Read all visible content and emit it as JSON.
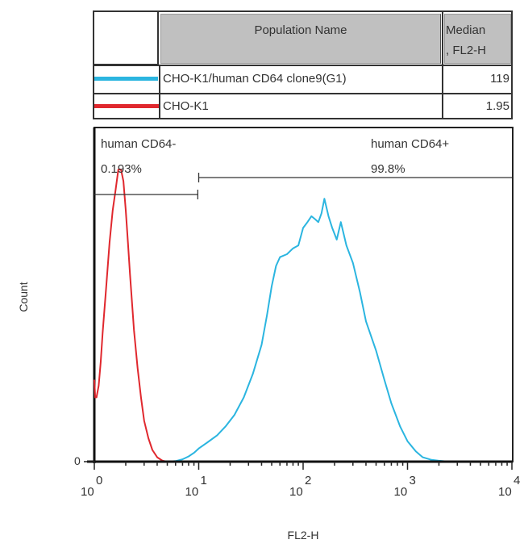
{
  "legend": {
    "header": {
      "population_name": "Population Name",
      "median_line1": "Median",
      "median_line2": ", FL2-H"
    },
    "rows": [
      {
        "color": "#2bb5e0",
        "name": "CHO-K1/human CD64 clone9(G1)",
        "median": "119"
      },
      {
        "color": "#e0282e",
        "name": "CHO-K1",
        "median": "1.95"
      }
    ]
  },
  "chart_data": {
    "type": "line",
    "title": "",
    "xlabel": "FL2-H",
    "ylabel": "Count",
    "x_scale": "log",
    "xlim": [
      1,
      10000
    ],
    "x_ticks": [
      "10^0",
      "10^1",
      "10^2",
      "10^3",
      "10^4"
    ],
    "y_ticks": [
      "0"
    ],
    "grid": false,
    "legend_position": "top table",
    "gates": [
      {
        "name": "human CD64-",
        "percent": "0.193%",
        "x_range": [
          1,
          9.8
        ]
      },
      {
        "name": "human CD64+",
        "percent": "99.8%",
        "x_range": [
          10,
          10000
        ]
      }
    ],
    "series": [
      {
        "name": "CHO-K1/human CD64 clone9(G1)",
        "color": "#2bb5e0",
        "median": 119,
        "x": [
          1,
          5,
          6,
          7,
          8,
          9,
          10,
          12,
          15,
          18,
          22,
          27,
          33,
          40,
          45,
          50,
          55,
          60,
          70,
          80,
          90,
          100,
          110,
          120,
          130,
          140,
          150,
          160,
          175,
          190,
          210,
          230,
          260,
          300,
          350,
          400,
          500,
          600,
          700,
          850,
          1000,
          1200,
          1400,
          1700,
          2000,
          2500,
          10000
        ],
        "y": [
          0,
          0,
          0.2,
          0.8,
          1.8,
          3,
          4.5,
          6.5,
          9,
          12,
          16,
          22,
          30,
          40,
          50,
          60,
          67,
          70,
          71,
          73,
          74,
          80,
          82,
          84,
          83,
          82,
          85,
          90,
          84,
          80,
          76,
          82,
          74,
          68,
          58,
          48,
          38,
          28,
          20,
          12,
          7,
          3.5,
          1.5,
          0.6,
          0.3,
          0,
          0
        ]
      },
      {
        "name": "CHO-K1",
        "color": "#e0282e",
        "median": 1.95,
        "x": [
          1,
          1.02,
          1.05,
          1.1,
          1.15,
          1.2,
          1.3,
          1.4,
          1.5,
          1.6,
          1.7,
          1.8,
          1.9,
          2.0,
          2.1,
          2.2,
          2.4,
          2.6,
          2.8,
          3.0,
          3.3,
          3.6,
          4.0,
          4.5,
          5,
          10000
        ],
        "y": [
          28,
          22,
          22,
          26,
          34,
          44,
          60,
          75,
          86,
          93,
          100,
          100,
          96,
          86,
          75,
          64,
          45,
          32,
          22,
          14,
          8,
          4,
          1.5,
          0.3,
          0,
          0
        ]
      }
    ]
  }
}
